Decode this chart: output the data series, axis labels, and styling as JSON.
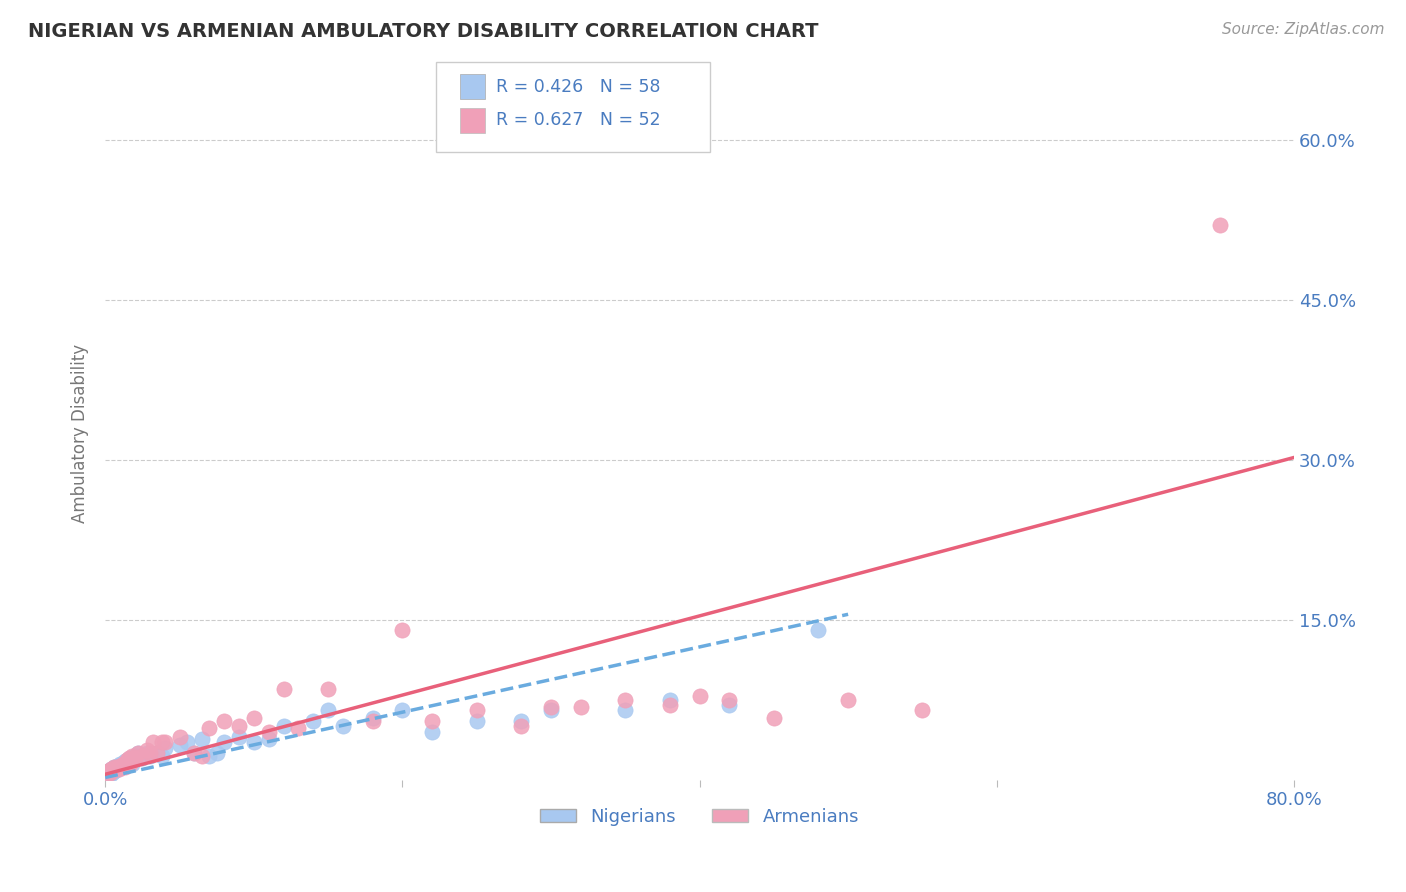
{
  "title": "NIGERIAN VS ARMENIAN AMBULATORY DISABILITY CORRELATION CHART",
  "source": "Source: ZipAtlas.com",
  "ylabel": "Ambulatory Disability",
  "xlim": [
    0.0,
    0.8
  ],
  "ylim": [
    0.0,
    0.65
  ],
  "xtick_positions": [
    0.0,
    0.2,
    0.4,
    0.6,
    0.8
  ],
  "xticklabels": [
    "0.0%",
    "",
    "",
    "",
    "80.0%"
  ],
  "ytick_positions": [
    0.15,
    0.3,
    0.45,
    0.6
  ],
  "ytick_labels": [
    "15.0%",
    "30.0%",
    "45.0%",
    "60.0%"
  ],
  "legend_R_nigerian": "R = 0.426",
  "legend_N_nigerian": "N = 58",
  "legend_R_armenian": "R = 0.627",
  "legend_N_armenian": "N = 52",
  "nigerian_color": "#a8c8f0",
  "armenian_color": "#f0a0b8",
  "nigerian_line_color": "#6aabdf",
  "armenian_line_color": "#e8607a",
  "label_color": "#4a7cc0",
  "background_color": "#ffffff",
  "nigerian_x": [
    0.001,
    0.002,
    0.002,
    0.003,
    0.003,
    0.004,
    0.004,
    0.005,
    0.005,
    0.006,
    0.006,
    0.007,
    0.007,
    0.008,
    0.008,
    0.009,
    0.01,
    0.01,
    0.011,
    0.012,
    0.013,
    0.014,
    0.015,
    0.016,
    0.017,
    0.018,
    0.02,
    0.022,
    0.025,
    0.028,
    0.03,
    0.035,
    0.038,
    0.04,
    0.05,
    0.055,
    0.06,
    0.065,
    0.07,
    0.075,
    0.08,
    0.09,
    0.1,
    0.11,
    0.12,
    0.14,
    0.15,
    0.16,
    0.18,
    0.2,
    0.22,
    0.25,
    0.28,
    0.3,
    0.35,
    0.38,
    0.42,
    0.48
  ],
  "nigerian_y": [
    0.003,
    0.005,
    0.007,
    0.006,
    0.008,
    0.005,
    0.01,
    0.007,
    0.01,
    0.008,
    0.012,
    0.009,
    0.01,
    0.01,
    0.013,
    0.012,
    0.013,
    0.015,
    0.014,
    0.016,
    0.017,
    0.015,
    0.018,
    0.019,
    0.02,
    0.015,
    0.022,
    0.025,
    0.02,
    0.025,
    0.022,
    0.025,
    0.022,
    0.03,
    0.032,
    0.035,
    0.025,
    0.038,
    0.022,
    0.025,
    0.035,
    0.04,
    0.035,
    0.038,
    0.05,
    0.055,
    0.065,
    0.05,
    0.058,
    0.065,
    0.045,
    0.055,
    0.055,
    0.065,
    0.065,
    0.075,
    0.07,
    0.14
  ],
  "armenian_x": [
    0.001,
    0.002,
    0.003,
    0.004,
    0.005,
    0.006,
    0.007,
    0.008,
    0.009,
    0.01,
    0.011,
    0.012,
    0.013,
    0.015,
    0.016,
    0.017,
    0.018,
    0.02,
    0.022,
    0.025,
    0.028,
    0.03,
    0.032,
    0.035,
    0.038,
    0.04,
    0.05,
    0.06,
    0.065,
    0.07,
    0.08,
    0.09,
    0.1,
    0.11,
    0.12,
    0.13,
    0.15,
    0.18,
    0.2,
    0.22,
    0.25,
    0.28,
    0.3,
    0.32,
    0.35,
    0.38,
    0.4,
    0.42,
    0.45,
    0.5,
    0.55,
    0.75
  ],
  "armenian_y": [
    0.005,
    0.008,
    0.006,
    0.01,
    0.009,
    0.012,
    0.01,
    0.012,
    0.01,
    0.013,
    0.012,
    0.015,
    0.012,
    0.018,
    0.02,
    0.015,
    0.022,
    0.02,
    0.025,
    0.022,
    0.028,
    0.025,
    0.035,
    0.025,
    0.035,
    0.035,
    0.04,
    0.025,
    0.022,
    0.048,
    0.055,
    0.05,
    0.058,
    0.045,
    0.085,
    0.048,
    0.085,
    0.055,
    0.14,
    0.055,
    0.065,
    0.05,
    0.068,
    0.068,
    0.075,
    0.07,
    0.078,
    0.075,
    0.058,
    0.075,
    0.065,
    0.52
  ],
  "nig_trend_x": [
    0.0,
    0.5
  ],
  "nig_trend_y": [
    0.002,
    0.155
  ],
  "arm_trend_x": [
    0.0,
    0.8
  ],
  "arm_trend_y": [
    0.005,
    0.302
  ]
}
